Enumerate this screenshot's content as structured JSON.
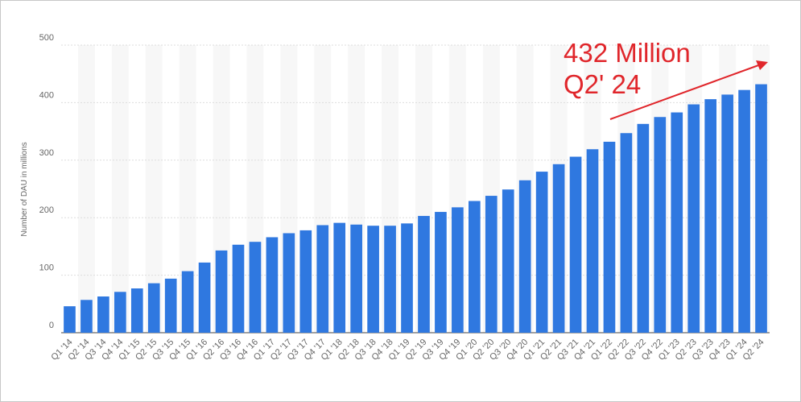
{
  "chart_data": {
    "type": "bar",
    "y_label": "Number of DAU in millions",
    "annotation_lines": [
      "432 Million",
      "Q2' 24"
    ],
    "annotation_color": "#e0262b",
    "color": "#2f78e0",
    "grid": true,
    "categories": [
      "Q1 '14",
      "Q2 '14",
      "Q3 '14",
      "Q4 '14",
      "Q1 '15",
      "Q2 '15",
      "Q3 '15",
      "Q4 '15",
      "Q1 '16",
      "Q2 '16",
      "Q3 '16",
      "Q4 '16",
      "Q1 '17",
      "Q2 '17",
      "Q3 '17",
      "Q4 '17",
      "Q1 '18",
      "Q2 '18",
      "Q3 '18",
      "Q4 '18",
      "Q1 '19",
      "Q2 '19",
      "Q3 '19",
      "Q4 '19",
      "Q1 '20",
      "Q2 '20",
      "Q3 '20",
      "Q4 '20",
      "Q1 '21",
      "Q2 '21",
      "Q3 '21",
      "Q4 '21",
      "Q1 '22",
      "Q2 '22",
      "Q3 '22",
      "Q4 '22",
      "Q1 '23",
      "Q2 '23",
      "Q3 '23",
      "Q4 '23",
      "Q1 '24",
      "Q2 '24"
    ],
    "values": [
      46,
      57,
      63,
      71,
      77,
      86,
      94,
      107,
      122,
      143,
      153,
      158,
      166,
      173,
      178,
      187,
      191,
      188,
      186,
      186,
      190,
      203,
      210,
      218,
      229,
      238,
      249,
      265,
      280,
      293,
      306,
      319,
      332,
      347,
      363,
      375,
      383,
      397,
      406,
      414,
      422,
      432
    ],
    "ylim": [
      0,
      500
    ],
    "yticks": [
      0,
      100,
      200,
      300,
      400,
      500
    ]
  }
}
